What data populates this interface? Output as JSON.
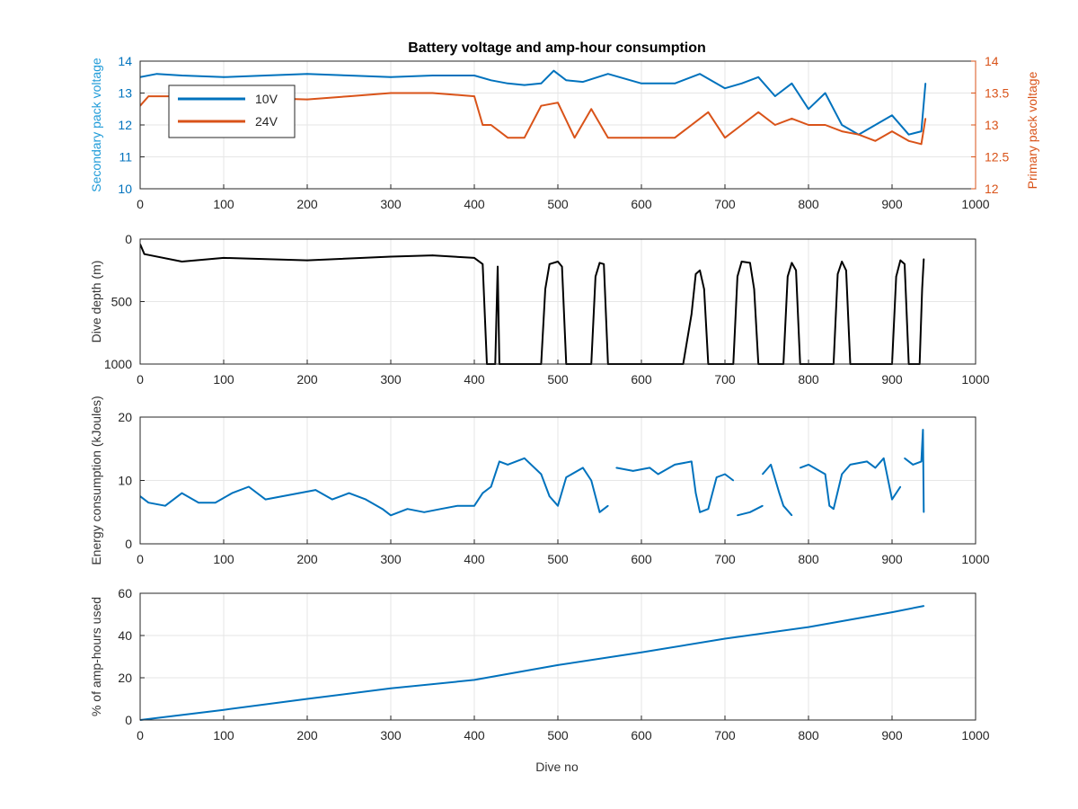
{
  "figure": {
    "title": "Battery voltage and amp-hour consumption",
    "xlabel": "Dive no"
  },
  "colors": {
    "blue": "#0072bd",
    "orange": "#d95319",
    "black": "#000000",
    "left_axis_label_blue": "#1f9bd8",
    "grid": "#e6e6e6"
  },
  "chart_data": [
    {
      "type": "line",
      "title": "Battery voltage and amp-hour consumption",
      "xlabel": "",
      "ylabel": "Secondary pack voltage",
      "y2label": "Primary pack voltage",
      "xlim": [
        0,
        1000
      ],
      "ylim": [
        10,
        14
      ],
      "y2lim": [
        12,
        14
      ],
      "xticks": [
        "0",
        "100",
        "200",
        "300",
        "400",
        "500",
        "600",
        "700",
        "800",
        "900",
        "1000"
      ],
      "yticks": [
        "10",
        "11",
        "12",
        "13",
        "14"
      ],
      "y2ticks": [
        "12",
        "12.5",
        "13",
        "13.5",
        "14"
      ],
      "grid": true,
      "legend": {
        "placement": "top-left",
        "entries": [
          "10V",
          "24V"
        ]
      },
      "series": [
        {
          "name": "10V",
          "axis": "left",
          "color": "#0072bd",
          "x": [
            0,
            20,
            50,
            100,
            150,
            200,
            250,
            300,
            350,
            400,
            420,
            440,
            460,
            480,
            495,
            510,
            530,
            560,
            600,
            640,
            670,
            700,
            720,
            740,
            760,
            780,
            800,
            820,
            840,
            860,
            880,
            900,
            920,
            935,
            940
          ],
          "y": [
            13.5,
            13.6,
            13.55,
            13.5,
            13.55,
            13.6,
            13.55,
            13.5,
            13.55,
            13.55,
            13.4,
            13.3,
            13.25,
            13.3,
            13.7,
            13.4,
            13.35,
            13.6,
            13.3,
            13.3,
            13.6,
            13.15,
            13.3,
            13.5,
            12.9,
            13.3,
            12.5,
            13.0,
            12.0,
            11.7,
            12.0,
            12.3,
            11.7,
            11.8,
            13.3
          ]
        },
        {
          "name": "24V",
          "axis": "right",
          "color": "#d95319",
          "x": [
            0,
            10,
            50,
            100,
            150,
            200,
            250,
            300,
            350,
            400,
            410,
            420,
            440,
            460,
            480,
            500,
            520,
            540,
            560,
            600,
            640,
            680,
            700,
            720,
            740,
            760,
            780,
            800,
            820,
            840,
            860,
            880,
            900,
            920,
            935,
            940
          ],
          "y": [
            13.3,
            13.45,
            13.45,
            13.48,
            13.42,
            13.4,
            13.45,
            13.5,
            13.5,
            13.45,
            13.0,
            13.0,
            12.8,
            12.8,
            13.3,
            13.35,
            12.8,
            13.25,
            12.8,
            12.8,
            12.8,
            13.2,
            12.8,
            13.0,
            13.2,
            13.0,
            13.1,
            13.0,
            13.0,
            12.9,
            12.85,
            12.75,
            12.9,
            12.75,
            12.7,
            13.1
          ]
        }
      ]
    },
    {
      "type": "line",
      "xlabel": "",
      "ylabel": "Dive depth (m)",
      "xlim": [
        0,
        1000
      ],
      "ylim": [
        0,
        1000
      ],
      "y_reversed": true,
      "xticks": [
        "0",
        "100",
        "200",
        "300",
        "400",
        "500",
        "600",
        "700",
        "800",
        "900",
        "1000"
      ],
      "yticks": [
        "0",
        "500",
        "1000"
      ],
      "grid": true,
      "series": [
        {
          "color": "#000000",
          "x": [
            0,
            5,
            50,
            100,
            200,
            300,
            350,
            400,
            410,
            415,
            425,
            428,
            430,
            432,
            480,
            485,
            490,
            500,
            505,
            510,
            540,
            545,
            550,
            555,
            560,
            560,
            650,
            660,
            665,
            670,
            675,
            680,
            710,
            715,
            720,
            730,
            735,
            740,
            770,
            775,
            780,
            785,
            790,
            830,
            835,
            840,
            845,
            850,
            900,
            905,
            910,
            915,
            920,
            933,
            936,
            938
          ],
          "y": [
            40,
            120,
            180,
            150,
            170,
            140,
            130,
            150,
            200,
            1000,
            1000,
            220,
            1000,
            1000,
            1000,
            400,
            200,
            180,
            220,
            1000,
            1000,
            300,
            190,
            200,
            1000,
            1000,
            1000,
            600,
            280,
            250,
            400,
            1000,
            1000,
            300,
            180,
            190,
            400,
            1000,
            1000,
            300,
            190,
            250,
            1000,
            1000,
            280,
            180,
            250,
            1000,
            1000,
            300,
            170,
            200,
            1000,
            1000,
            400,
            160
          ]
        }
      ]
    },
    {
      "type": "line",
      "xlabel": "",
      "ylabel": "Energy consumption (kJoules)",
      "xlim": [
        0,
        1000
      ],
      "ylim": [
        0,
        20
      ],
      "xticks": [
        "0",
        "100",
        "200",
        "300",
        "400",
        "500",
        "600",
        "700",
        "800",
        "900",
        "1000"
      ],
      "yticks": [
        "0",
        "10",
        "20"
      ],
      "grid": true,
      "series": [
        {
          "color": "#0072bd",
          "segments": [
            {
              "x": [
                0,
                10,
                30,
                50,
                70,
                90,
                110,
                130,
                150,
                170,
                190,
                210,
                230,
                250,
                270,
                290,
                300,
                320,
                340,
                360,
                380,
                400,
                410,
                420,
                430,
                440,
                460,
                480,
                490,
                500,
                510,
                530,
                540,
                550,
                560
              ],
              "y": [
                7.5,
                6.5,
                6.0,
                8.0,
                6.5,
                6.5,
                8.0,
                9.0,
                7.0,
                7.5,
                8.0,
                8.5,
                7.0,
                8.0,
                7.0,
                5.5,
                4.5,
                5.5,
                5.0,
                5.5,
                6.0,
                6.0,
                8.0,
                9.0,
                13.0,
                12.5,
                13.5,
                11.0,
                7.5,
                6.0,
                10.5,
                12.0,
                10.0,
                5.0,
                6.0
              ]
            },
            {
              "x": [
                570,
                590,
                610,
                620,
                640,
                660,
                665,
                670,
                680,
                690,
                700,
                710
              ],
              "y": [
                12.0,
                11.5,
                12.0,
                11.0,
                12.5,
                13.0,
                8.0,
                5.0,
                5.5,
                10.5,
                11.0,
                10.0
              ]
            },
            {
              "x": [
                715,
                730,
                745
              ],
              "y": [
                4.5,
                5.0,
                6.0
              ]
            },
            {
              "x": [
                745,
                755,
                765,
                770,
                780
              ],
              "y": [
                11.0,
                12.5,
                8.0,
                6.0,
                4.5
              ]
            },
            {
              "x": [
                790,
                800,
                820,
                825,
                830,
                840,
                850,
                870,
                880,
                890,
                900,
                910
              ],
              "y": [
                12.0,
                12.5,
                11.0,
                6.0,
                5.5,
                11.0,
                12.5,
                13.0,
                12.0,
                13.5,
                7.0,
                9.0
              ]
            },
            {
              "x": [
                915,
                925,
                935,
                937,
                938
              ],
              "y": [
                13.5,
                12.5,
                13.0,
                18.0,
                5.0
              ]
            }
          ]
        }
      ]
    },
    {
      "type": "line",
      "xlabel": "Dive no",
      "ylabel": "% of amp-hours used",
      "xlim": [
        0,
        1000
      ],
      "ylim": [
        0,
        60
      ],
      "xticks": [
        "0",
        "100",
        "200",
        "300",
        "400",
        "500",
        "600",
        "700",
        "800",
        "900",
        "1000"
      ],
      "yticks": [
        "0",
        "20",
        "40",
        "60"
      ],
      "grid": true,
      "series": [
        {
          "color": "#0072bd",
          "x": [
            0,
            100,
            200,
            300,
            400,
            500,
            600,
            700,
            800,
            900,
            938
          ],
          "y": [
            0,
            4.8,
            10,
            15,
            19,
            26,
            32,
            38.5,
            44,
            51,
            54
          ]
        }
      ]
    }
  ]
}
